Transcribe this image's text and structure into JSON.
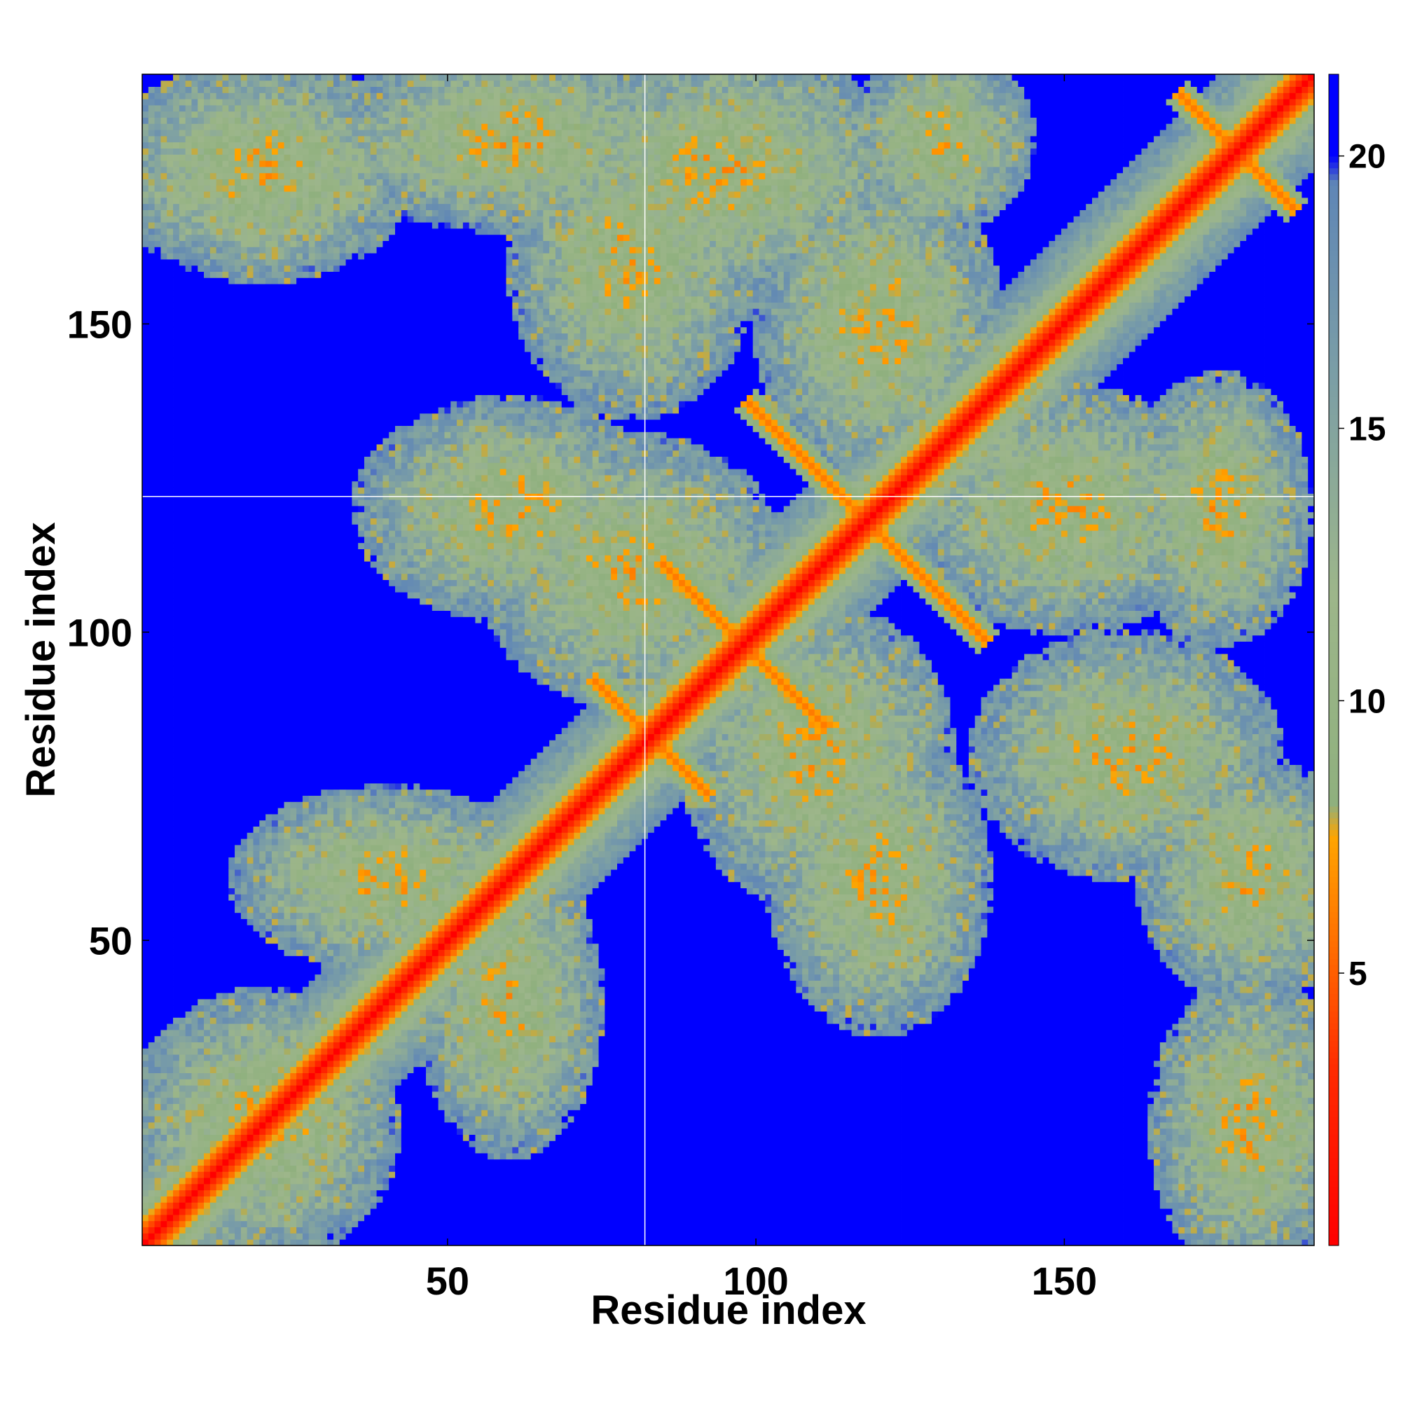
{
  "chart_data": {
    "type": "heatmap",
    "title": "",
    "xlabel": "Residue index",
    "ylabel": "Residue index",
    "n_residues": 190,
    "xlim": [
      1,
      190
    ],
    "ylim": [
      1,
      190
    ],
    "x_ticks": [
      50,
      100,
      150
    ],
    "y_ticks": [
      50,
      100,
      150
    ],
    "colorbar": {
      "ticks": [
        5,
        10,
        15,
        20
      ],
      "range": [
        0,
        21.5
      ],
      "stops": [
        {
          "value": 0,
          "color": "#ff0000"
        },
        {
          "value": 3.2,
          "color": "#ff2a00"
        },
        {
          "value": 5.4,
          "color": "#ff6a00"
        },
        {
          "value": 7.5,
          "color": "#ffa500"
        },
        {
          "value": 8.1,
          "color": "#8fb07e"
        },
        {
          "value": 12,
          "color": "#9db68a"
        },
        {
          "value": 16,
          "color": "#7b9ea6"
        },
        {
          "value": 19.5,
          "color": "#5f86b6"
        },
        {
          "value": 20,
          "color": "#0000ff"
        },
        {
          "value": 21.5,
          "color": "#0000ff"
        }
      ]
    },
    "features": {
      "main_diagonal": {
        "from": 1,
        "to": 190
      },
      "anti_diagonal_contacts": [
        {
          "center": [
            118,
            118
          ],
          "span": 20
        },
        {
          "center": [
            98,
            98
          ],
          "span": 14
        },
        {
          "center": [
            83,
            83
          ],
          "span": 10
        },
        {
          "center": [
            178,
            178
          ],
          "span": 10
        }
      ],
      "grid_lines": {
        "x": 82,
        "y": 122
      }
    }
  }
}
